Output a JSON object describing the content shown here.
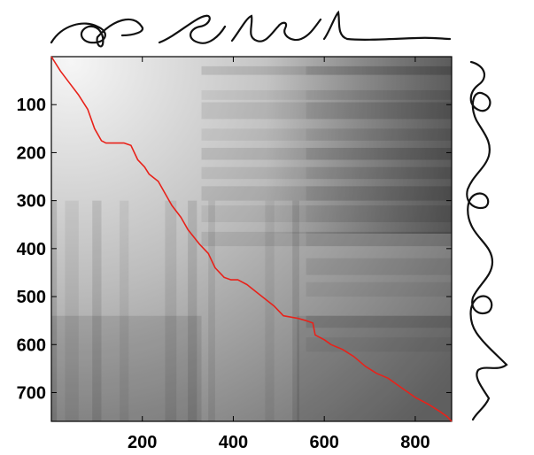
{
  "chart_data": {
    "type": "heatmap",
    "title": "",
    "xlabel": "",
    "ylabel": "",
    "xlim": [
      0,
      880
    ],
    "ylim": [
      760,
      0
    ],
    "x_ticks": [
      200,
      400,
      600,
      800
    ],
    "y_ticks": [
      100,
      200,
      300,
      400,
      500,
      600,
      700
    ],
    "x_tick_labels": [
      "200",
      "400",
      "600",
      "800"
    ],
    "y_tick_labels": [
      "100",
      "200",
      "300",
      "400",
      "500",
      "600",
      "700"
    ],
    "colormap": "grayscale",
    "grid": false,
    "path_color": "#e8221a",
    "series": [
      {
        "type": "line",
        "x": [
          0,
          20,
          40,
          60,
          80,
          95,
          110,
          120,
          140,
          160,
          175,
          185,
          190,
          205,
          215,
          235,
          250,
          265,
          285,
          300,
          325,
          345,
          360,
          380,
          395,
          410,
          430,
          450,
          470,
          490,
          510,
          540,
          560,
          575,
          580,
          600,
          615,
          640,
          665,
          690,
          715,
          740,
          770,
          800,
          830,
          855,
          870,
          880
        ],
        "y": [
          0,
          30,
          55,
          80,
          110,
          150,
          175,
          180,
          180,
          180,
          185,
          205,
          215,
          230,
          245,
          260,
          285,
          310,
          335,
          360,
          390,
          410,
          440,
          460,
          465,
          465,
          475,
          490,
          505,
          520,
          540,
          545,
          550,
          555,
          580,
          590,
          600,
          610,
          625,
          645,
          660,
          670,
          690,
          710,
          725,
          740,
          750,
          760
        ]
      }
    ],
    "side_plots": [
      "top-signal-trace",
      "right-signal-trace"
    ]
  }
}
